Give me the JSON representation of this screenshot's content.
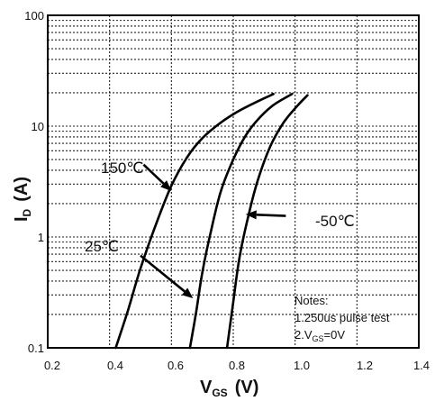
{
  "chart_data": {
    "type": "line",
    "title": "",
    "xlabel": {
      "main": "V",
      "sub": "GS",
      "unit": "(V)"
    },
    "ylabel": {
      "main": "I",
      "sub": "D",
      "unit": "(A)"
    },
    "xlim": [
      0.2,
      1.4
    ],
    "ylim": [
      0.1,
      100
    ],
    "yscale": "log",
    "grid": true,
    "x_ticks": [
      "0.2",
      "0.4",
      "0.6",
      "0.8",
      "1.0",
      "1.2",
      "1.4"
    ],
    "y_ticks": [
      "0.1",
      "1",
      "10",
      "100"
    ],
    "series": [
      {
        "name": "150°C",
        "x": [
          0.42,
          0.46,
          0.5,
          0.55,
          0.6,
          0.65,
          0.7,
          0.76,
          0.82,
          0.88,
          0.93
        ],
        "y": [
          0.1,
          0.22,
          0.52,
          1.3,
          2.9,
          5.2,
          7.8,
          10.8,
          13.8,
          16.8,
          19.5
        ]
      },
      {
        "name": "25°C",
        "x": [
          0.66,
          0.68,
          0.7,
          0.73,
          0.76,
          0.8,
          0.84,
          0.88,
          0.93,
          0.99
        ],
        "y": [
          0.1,
          0.21,
          0.48,
          1.2,
          2.6,
          5.0,
          8.2,
          11.5,
          15.5,
          19.5
        ]
      },
      {
        "name": "-50°C",
        "x": [
          0.78,
          0.8,
          0.82,
          0.85,
          0.88,
          0.92,
          0.96,
          1.0,
          1.04
        ],
        "y": [
          0.1,
          0.26,
          0.65,
          1.6,
          3.3,
          6.6,
          10.5,
          14.5,
          19.0
        ]
      }
    ],
    "annotations": [
      {
        "text": "150℃",
        "arrow_from": [
          0.51,
          4.5
        ],
        "arrow_to": [
          0.6,
          2.6
        ]
      },
      {
        "text": "25℃",
        "arrow_from": [
          0.5,
          0.68
        ],
        "arrow_to": [
          0.67,
          0.28
        ]
      },
      {
        "text": "-50℃",
        "arrow_from": [
          0.97,
          1.55
        ],
        "arrow_to": [
          0.84,
          1.6
        ]
      }
    ],
    "notes": {
      "title": "Notes:",
      "line1": "1.250us pulse test",
      "line2_main": "2.V",
      "line2_sub": "GS",
      "line2_rest": "=0V"
    }
  }
}
